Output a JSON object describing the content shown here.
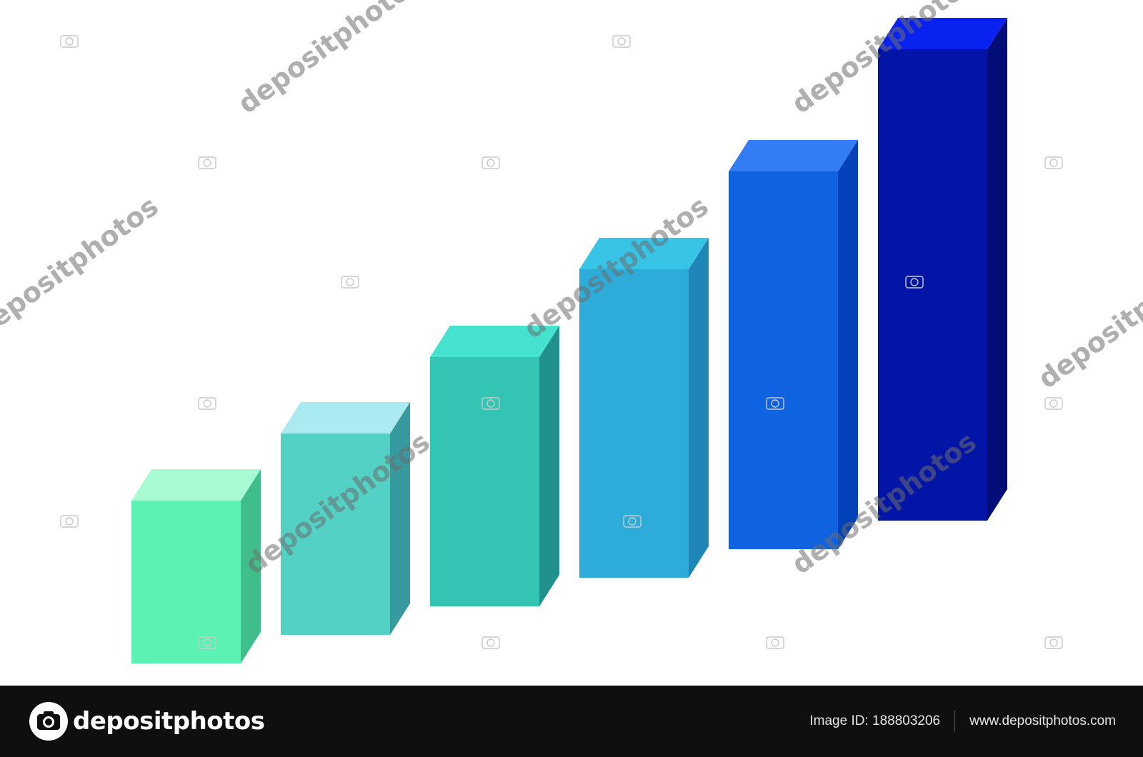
{
  "chart_data": {
    "type": "bar",
    "style": "3d",
    "title": "",
    "xlabel": "",
    "ylabel": "",
    "grid": false,
    "legend": "none",
    "ylim": [
      0,
      690
    ],
    "categories": [
      "",
      "",
      "",
      "",
      "",
      ""
    ],
    "values": [
      228,
      282,
      349,
      432,
      529,
      660
    ],
    "colors": {
      "front": [
        "#5cf2b4",
        "#52d1c4",
        "#34c4b4",
        "#2dacd9",
        "#1063e0",
        "#0315a6"
      ],
      "top": [
        "#a8fcd4",
        "#aaeaf0",
        "#44e2cf",
        "#38c4e6",
        "#347cf4",
        "#0a22f0"
      ],
      "side": [
        "#3fbe8c",
        "#379a9e",
        "#21918e",
        "#1e87b8",
        "#0442bc",
        "#030d78"
      ]
    }
  },
  "watermark": {
    "text": "depositphotos",
    "icon": "camera-icon"
  },
  "footer": {
    "brand": "depositphotos",
    "brand_icon": "camera-logo-icon",
    "image_id_label": "Image ID: 188803206",
    "site": "www.depositphotos.com",
    "background": "#0f0f0f"
  }
}
